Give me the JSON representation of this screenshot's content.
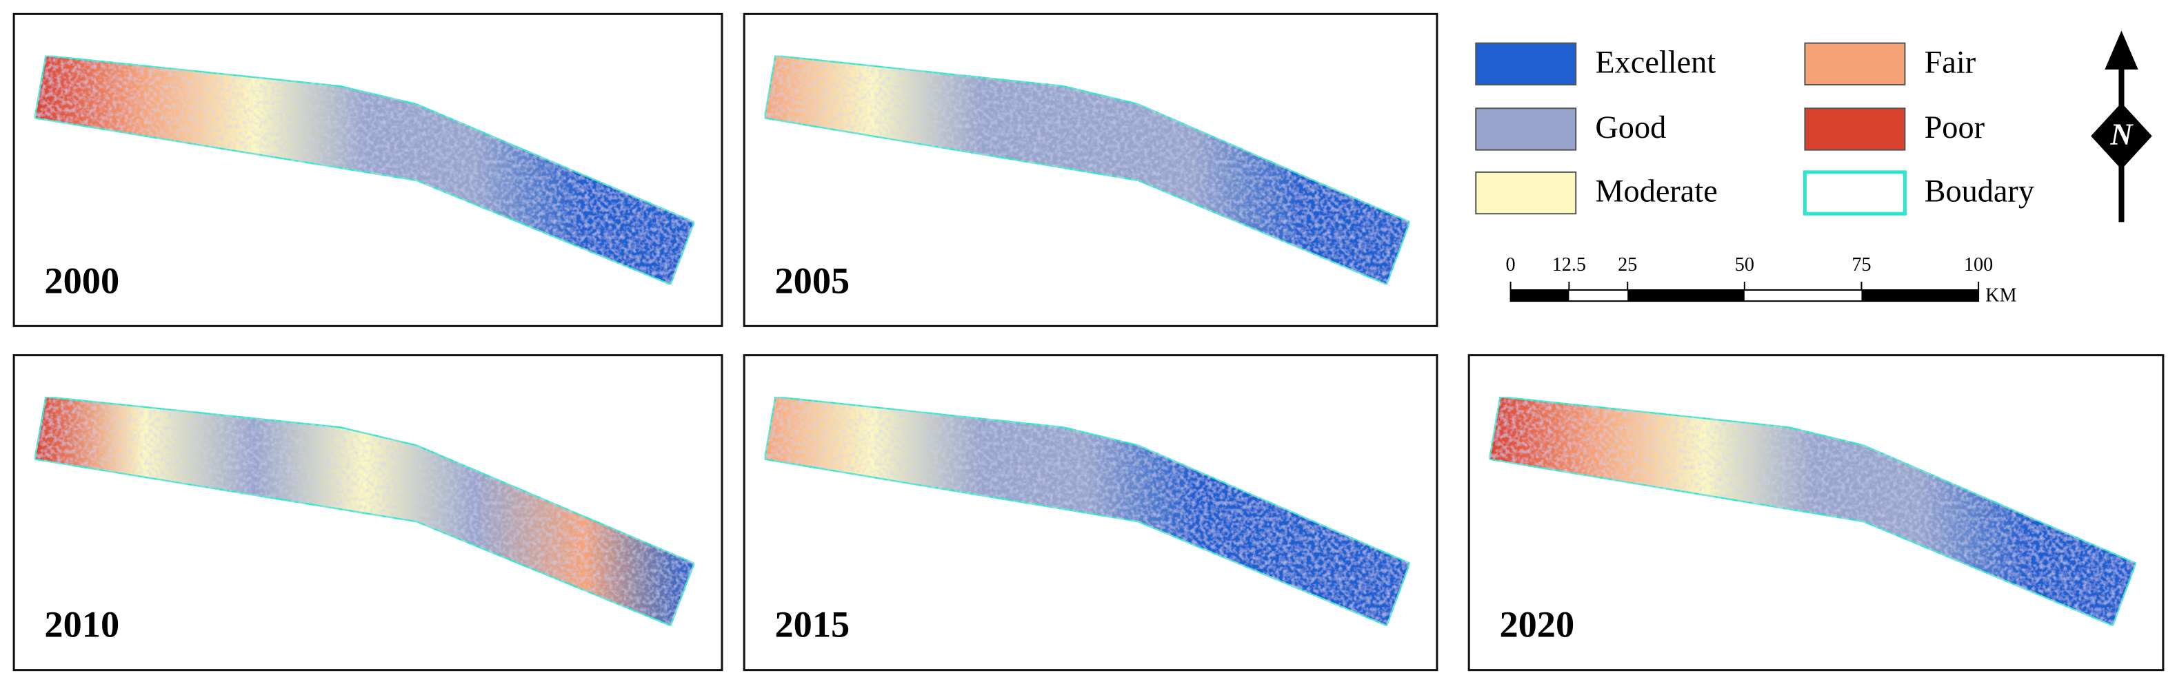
{
  "panels": [
    {
      "year": "2000"
    },
    {
      "year": "2005"
    },
    {
      "year": "2010"
    },
    {
      "year": "2015"
    },
    {
      "year": "2020"
    }
  ],
  "legend": {
    "items": [
      {
        "label": "Excellent",
        "color": "#1f5fd0"
      },
      {
        "label": "Good",
        "color": "#98a4cc"
      },
      {
        "label": "Moderate",
        "color": "#fdf8c0"
      },
      {
        "label": "Fair",
        "color": "#f6a477"
      },
      {
        "label": "Poor",
        "color": "#d9412f"
      },
      {
        "label": "Boudary",
        "color": "#2ee6d0",
        "style": "outline"
      }
    ]
  },
  "north_arrow": {
    "label": "N"
  },
  "scale_bar": {
    "ticks": [
      0,
      12.5,
      25,
      50,
      75,
      100
    ],
    "unit": "KM"
  }
}
